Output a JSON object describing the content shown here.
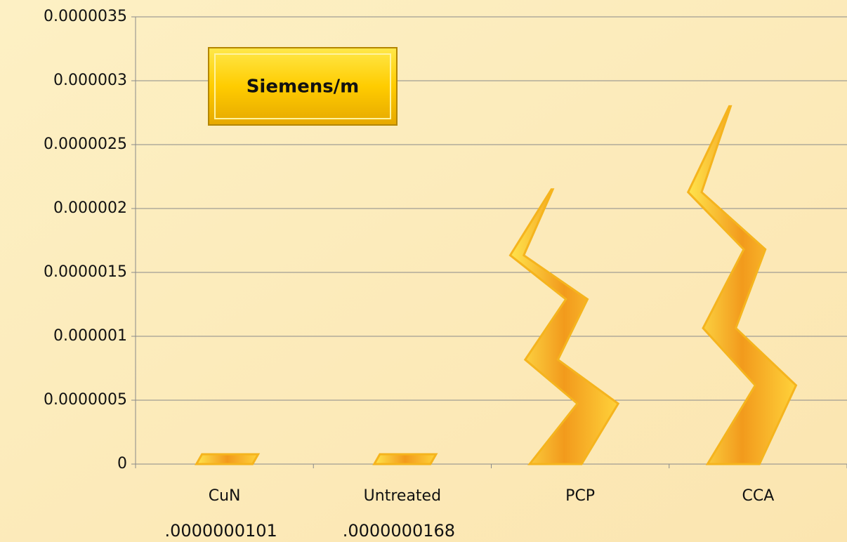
{
  "chart_data": {
    "type": "bolt",
    "annotation": "Siemens/m",
    "categories": [
      "CuN",
      "Untreated",
      "PCP",
      "CCA"
    ],
    "values": [
      1.01e-08,
      1.68e-08,
      2.15e-06,
      2.8e-06
    ],
    "value_labels": [
      ".0000000101",
      ".0000000168",
      null,
      null
    ],
    "color": "#f5b41e",
    "ylim": [
      0,
      3.5e-06
    ],
    "yticks": [
      0,
      {
        "value": 5e-07,
        "label": "0.0000005"
      },
      {
        "value": 1e-06,
        "label": "0.000001"
      },
      {
        "value": 1.5e-06,
        "label": "0.0000015"
      },
      {
        "value": 2e-06,
        "label": "0.000002"
      },
      {
        "value": 2.5e-06,
        "label": "0.0000025"
      },
      {
        "value": 3e-06,
        "label": "0.000003"
      },
      {
        "value": 3.5e-06,
        "label": "0.0000035"
      }
    ],
    "grid": true
  }
}
